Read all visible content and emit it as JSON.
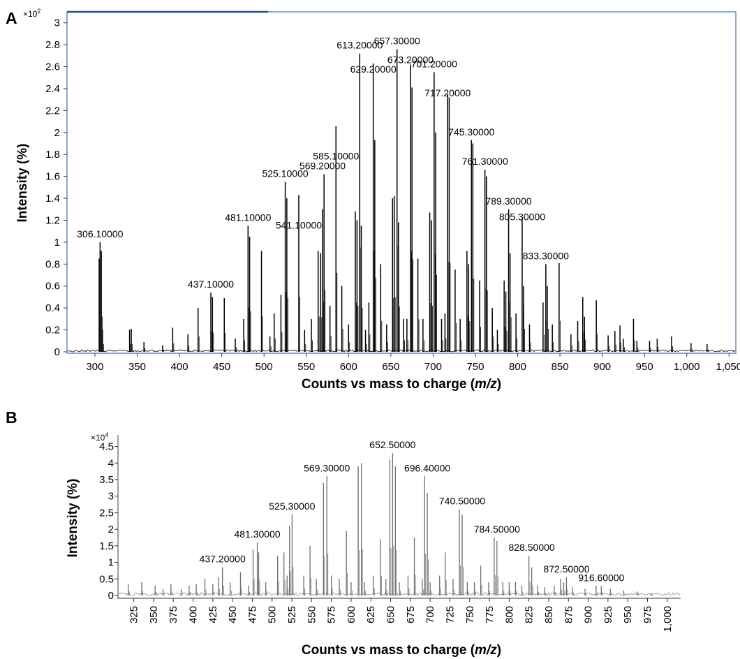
{
  "panels": [
    {
      "letter": "A",
      "multiplier": "×10",
      "multiplier_exp": "2",
      "ylabel": "Intensity (%)",
      "xlabel_prefix": "Counts vs mass to charge (",
      "xlabel_var": "m/z",
      "xlabel_suffix": ")"
    },
    {
      "letter": "B",
      "multiplier": "×10",
      "multiplier_exp": "4",
      "ylabel": "Intensity (%)",
      "xlabel_prefix": "Counts vs mass to charge (",
      "xlabel_var": "m/z",
      "xlabel_suffix": ")"
    }
  ],
  "colors": {
    "A_trace": "#000000",
    "B_trace": "#6e6e6e",
    "A_frame": "#4a6fa5"
  },
  "chart_data": [
    {
      "type": "line",
      "panel": "A",
      "xlabel": "Counts vs mass to charge (m/z)",
      "ylabel": "Intensity (%)",
      "y_multiplier": "×10²",
      "xlim": [
        267,
        1058
      ],
      "ylim": [
        0,
        3.1
      ],
      "x_ticks": [
        300,
        350,
        400,
        450,
        500,
        550,
        600,
        650,
        700,
        750,
        800,
        850,
        900,
        950,
        1000,
        1050
      ],
      "x_tick_labels": [
        "300",
        "350",
        "400",
        "450",
        "500",
        "550",
        "600",
        "650",
        "700",
        "750",
        "800",
        "850",
        "900",
        "950",
        "1,000",
        "1,050"
      ],
      "y_ticks": [
        0,
        0.2,
        0.4,
        0.6,
        0.8,
        1,
        1.2,
        1.4,
        1.6,
        1.8,
        2,
        2.2,
        2.4,
        2.6,
        2.8,
        3
      ],
      "y_tick_labels": [
        "0",
        "0.2",
        "0.4",
        "0.6",
        "0.8",
        "1",
        "1.2",
        "1.4",
        "1.6",
        "1.8",
        "2",
        "2.2",
        "2.4",
        "2.6",
        "2.8",
        "3"
      ],
      "grid": false,
      "peaks": [
        [
          305,
          0.85
        ],
        [
          306.1,
          1.0
        ],
        [
          307.6,
          0.92
        ],
        [
          309,
          0.2
        ],
        [
          341,
          0.2
        ],
        [
          343,
          0.21
        ],
        [
          358,
          0.09
        ],
        [
          380,
          0.06
        ],
        [
          392,
          0.22
        ],
        [
          410,
          0.16
        ],
        [
          422,
          0.4
        ],
        [
          437.1,
          0.54
        ],
        [
          439,
          0.5
        ],
        [
          453,
          0.49
        ],
        [
          466,
          0.12
        ],
        [
          476,
          0.3
        ],
        [
          481.1,
          1.15
        ],
        [
          483,
          1.05
        ],
        [
          497,
          0.92
        ],
        [
          507,
          0.14
        ],
        [
          512,
          0.35
        ],
        [
          520,
          0.52
        ],
        [
          525.1,
          1.55
        ],
        [
          527,
          1.4
        ],
        [
          541.1,
          1.43
        ],
        [
          548,
          0.2
        ],
        [
          556,
          0.3
        ],
        [
          564,
          0.92
        ],
        [
          567,
          0.9
        ],
        [
          569.2,
          1.3
        ],
        [
          571,
          1.62
        ],
        [
          578,
          0.42
        ],
        [
          585.1,
          2.06
        ],
        [
          592,
          0.6
        ],
        [
          600,
          0.25
        ],
        [
          608,
          1.28
        ],
        [
          610,
          1.2
        ],
        [
          613.2,
          2.72
        ],
        [
          615,
          1.15
        ],
        [
          620,
          0.2
        ],
        [
          624,
          0.45
        ],
        [
          629.2,
          2.63
        ],
        [
          631,
          1.93
        ],
        [
          638,
          0.8
        ],
        [
          645,
          0.25
        ],
        [
          652,
          1.4
        ],
        [
          654,
          1.42
        ],
        [
          657.3,
          2.76
        ],
        [
          659,
          1.18
        ],
        [
          665,
          0.3
        ],
        [
          669,
          0.3
        ],
        [
          673.2,
          2.62
        ],
        [
          675,
          2.41
        ],
        [
          682,
          0.85
        ],
        [
          688,
          0.3
        ],
        [
          696,
          1.27
        ],
        [
          698,
          1.2
        ],
        [
          701.2,
          2.55
        ],
        [
          703,
          2.0
        ],
        [
          710,
          0.3
        ],
        [
          714,
          0.35
        ],
        [
          717.2,
          2.35
        ],
        [
          719,
          2.32
        ],
        [
          726,
          0.75
        ],
        [
          732,
          0.3
        ],
        [
          740,
          0.92
        ],
        [
          742,
          0.8
        ],
        [
          745.3,
          1.93
        ],
        [
          747,
          1.9
        ],
        [
          755,
          0.65
        ],
        [
          761.3,
          1.66
        ],
        [
          763,
          1.6
        ],
        [
          770,
          0.4
        ],
        [
          776,
          0.2
        ],
        [
          784,
          0.65
        ],
        [
          786,
          0.55
        ],
        [
          789.3,
          1.3
        ],
        [
          791,
          0.9
        ],
        [
          798,
          0.35
        ],
        [
          805.3,
          1.22
        ],
        [
          807,
          0.6
        ],
        [
          814,
          0.25
        ],
        [
          830,
          0.45
        ],
        [
          833.3,
          0.8
        ],
        [
          835,
          0.6
        ],
        [
          841,
          0.25
        ],
        [
          849,
          0.81
        ],
        [
          863,
          0.16
        ],
        [
          871,
          0.28
        ],
        [
          877,
          0.5
        ],
        [
          879,
          0.32
        ],
        [
          893,
          0.47
        ],
        [
          907,
          0.15
        ],
        [
          915,
          0.19
        ],
        [
          921,
          0.24
        ],
        [
          925,
          0.12
        ],
        [
          937,
          0.3
        ],
        [
          941,
          0.1
        ],
        [
          956,
          0.1
        ],
        [
          965,
          0.12
        ],
        [
          982,
          0.14
        ],
        [
          1005,
          0.08
        ],
        [
          1024,
          0.07
        ]
      ],
      "annotations": [
        {
          "x": 306.1,
          "text": "306.10000"
        },
        {
          "x": 437.1,
          "text": "437.10000"
        },
        {
          "x": 481.1,
          "text": "481.10000"
        },
        {
          "x": 525.1,
          "text": "525.10000"
        },
        {
          "x": 541.1,
          "text": "541.10000"
        },
        {
          "x": 569.2,
          "text": "569.20000"
        },
        {
          "x": 585.1,
          "text": "585.10000"
        },
        {
          "x": 613.2,
          "text": "613.20000"
        },
        {
          "x": 629.2,
          "text": "629.20000"
        },
        {
          "x": 657.3,
          "text": "657.30000"
        },
        {
          "x": 673.2,
          "text": "673.20000"
        },
        {
          "x": 701.2,
          "text": "701.20000"
        },
        {
          "x": 717.2,
          "text": "717.20000"
        },
        {
          "x": 745.3,
          "text": "745.30000"
        },
        {
          "x": 761.3,
          "text": "761.30000"
        },
        {
          "x": 789.3,
          "text": "789.30000"
        },
        {
          "x": 805.3,
          "text": "805.30000"
        },
        {
          "x": 833.3,
          "text": "833.30000"
        }
      ]
    },
    {
      "type": "line",
      "panel": "B",
      "xlabel": "Counts vs mass to charge (m/z)",
      "ylabel": "Intensity (%)",
      "y_multiplier": "×10⁴",
      "xlim": [
        305,
        1017
      ],
      "ylim": [
        0,
        4.85
      ],
      "x_ticks": [
        325,
        350,
        375,
        400,
        425,
        450,
        475,
        500,
        525,
        550,
        575,
        600,
        625,
        650,
        675,
        700,
        725,
        750,
        775,
        800,
        825,
        850,
        875,
        900,
        925,
        950,
        975,
        1000
      ],
      "x_tick_labels": [
        "325",
        "350",
        "375",
        "400",
        "425",
        "450",
        "475",
        "500",
        "525",
        "550",
        "575",
        "600",
        "625",
        "650",
        "675",
        "700",
        "725",
        "750",
        "775",
        "800",
        "825",
        "850",
        "875",
        "900",
        "925",
        "950",
        "975",
        "1,000"
      ],
      "y_ticks": [
        0,
        0.5,
        1,
        1.5,
        2,
        2.5,
        3,
        3.5,
        4,
        4.5
      ],
      "y_tick_labels": [
        "0",
        "0.5",
        "1",
        "1.5",
        "2",
        "2.5",
        "3",
        "3.5",
        "4",
        "4.5"
      ],
      "grid": false,
      "peaks": [
        [
          318,
          0.35
        ],
        [
          335,
          0.4
        ],
        [
          352,
          0.3
        ],
        [
          362,
          0.2
        ],
        [
          372,
          0.35
        ],
        [
          385,
          0.2
        ],
        [
          395,
          0.3
        ],
        [
          404,
          0.35
        ],
        [
          415,
          0.5
        ],
        [
          425,
          0.35
        ],
        [
          432,
          0.55
        ],
        [
          437.2,
          0.85
        ],
        [
          447,
          0.4
        ],
        [
          460,
          0.7
        ],
        [
          470,
          0.3
        ],
        [
          476,
          1.4
        ],
        [
          481.3,
          1.6
        ],
        [
          483,
          1.3
        ],
        [
          492,
          0.4
        ],
        [
          507,
          1.2
        ],
        [
          515,
          1.3
        ],
        [
          519,
          0.6
        ],
        [
          522,
          2.1
        ],
        [
          525.3,
          2.45
        ],
        [
          540,
          0.6
        ],
        [
          548,
          1.5
        ],
        [
          556,
          0.5
        ],
        [
          565,
          3.4
        ],
        [
          569.3,
          3.6
        ],
        [
          575,
          0.6
        ],
        [
          585,
          0.5
        ],
        [
          594,
          1.95
        ],
        [
          600,
          0.4
        ],
        [
          609,
          3.9
        ],
        [
          613,
          4.0
        ],
        [
          617,
          0.4
        ],
        [
          628,
          0.6
        ],
        [
          637,
          1.7
        ],
        [
          644,
          0.5
        ],
        [
          649,
          4.1
        ],
        [
          652.5,
          4.3
        ],
        [
          656,
          3.9
        ],
        [
          661,
          0.4
        ],
        [
          672,
          0.6
        ],
        [
          680,
          1.75
        ],
        [
          690,
          0.5
        ],
        [
          693,
          3.6
        ],
        [
          696.4,
          3.1
        ],
        [
          700,
          0.4
        ],
        [
          712,
          0.6
        ],
        [
          719,
          1.3
        ],
        [
          729,
          0.5
        ],
        [
          737,
          2.6
        ],
        [
          740.5,
          2.45
        ],
        [
          747,
          0.4
        ],
        [
          756,
          0.4
        ],
        [
          764,
          0.9
        ],
        [
          774,
          0.4
        ],
        [
          781,
          1.75
        ],
        [
          784.5,
          1.65
        ],
        [
          792,
          0.4
        ],
        [
          800,
          0.4
        ],
        [
          808,
          0.4
        ],
        [
          816,
          0.3
        ],
        [
          825,
          1.2
        ],
        [
          828.5,
          0.85
        ],
        [
          836,
          0.3
        ],
        [
          845,
          0.25
        ],
        [
          857,
          0.3
        ],
        [
          865,
          0.5
        ],
        [
          869,
          0.4
        ],
        [
          872.5,
          0.55
        ],
        [
          880,
          0.25
        ],
        [
          896,
          0.2
        ],
        [
          910,
          0.3
        ],
        [
          916.6,
          0.28
        ],
        [
          928,
          0.2
        ],
        [
          945,
          0.15
        ],
        [
          962,
          0.12
        ],
        [
          980,
          0.08
        ]
      ],
      "annotations": [
        {
          "x": 437.2,
          "text": "437.20000"
        },
        {
          "x": 481.3,
          "text": "481.30000"
        },
        {
          "x": 525.3,
          "text": "525.30000"
        },
        {
          "x": 569.3,
          "text": "569.30000"
        },
        {
          "x": 652.5,
          "text": "652.50000"
        },
        {
          "x": 696.4,
          "text": "696.40000"
        },
        {
          "x": 740.5,
          "text": "740.50000"
        },
        {
          "x": 784.5,
          "text": "784.50000"
        },
        {
          "x": 828.5,
          "text": "828.50000"
        },
        {
          "x": 872.5,
          "text": "872.50000"
        },
        {
          "x": 916.6,
          "text": "916.60000"
        }
      ]
    }
  ]
}
